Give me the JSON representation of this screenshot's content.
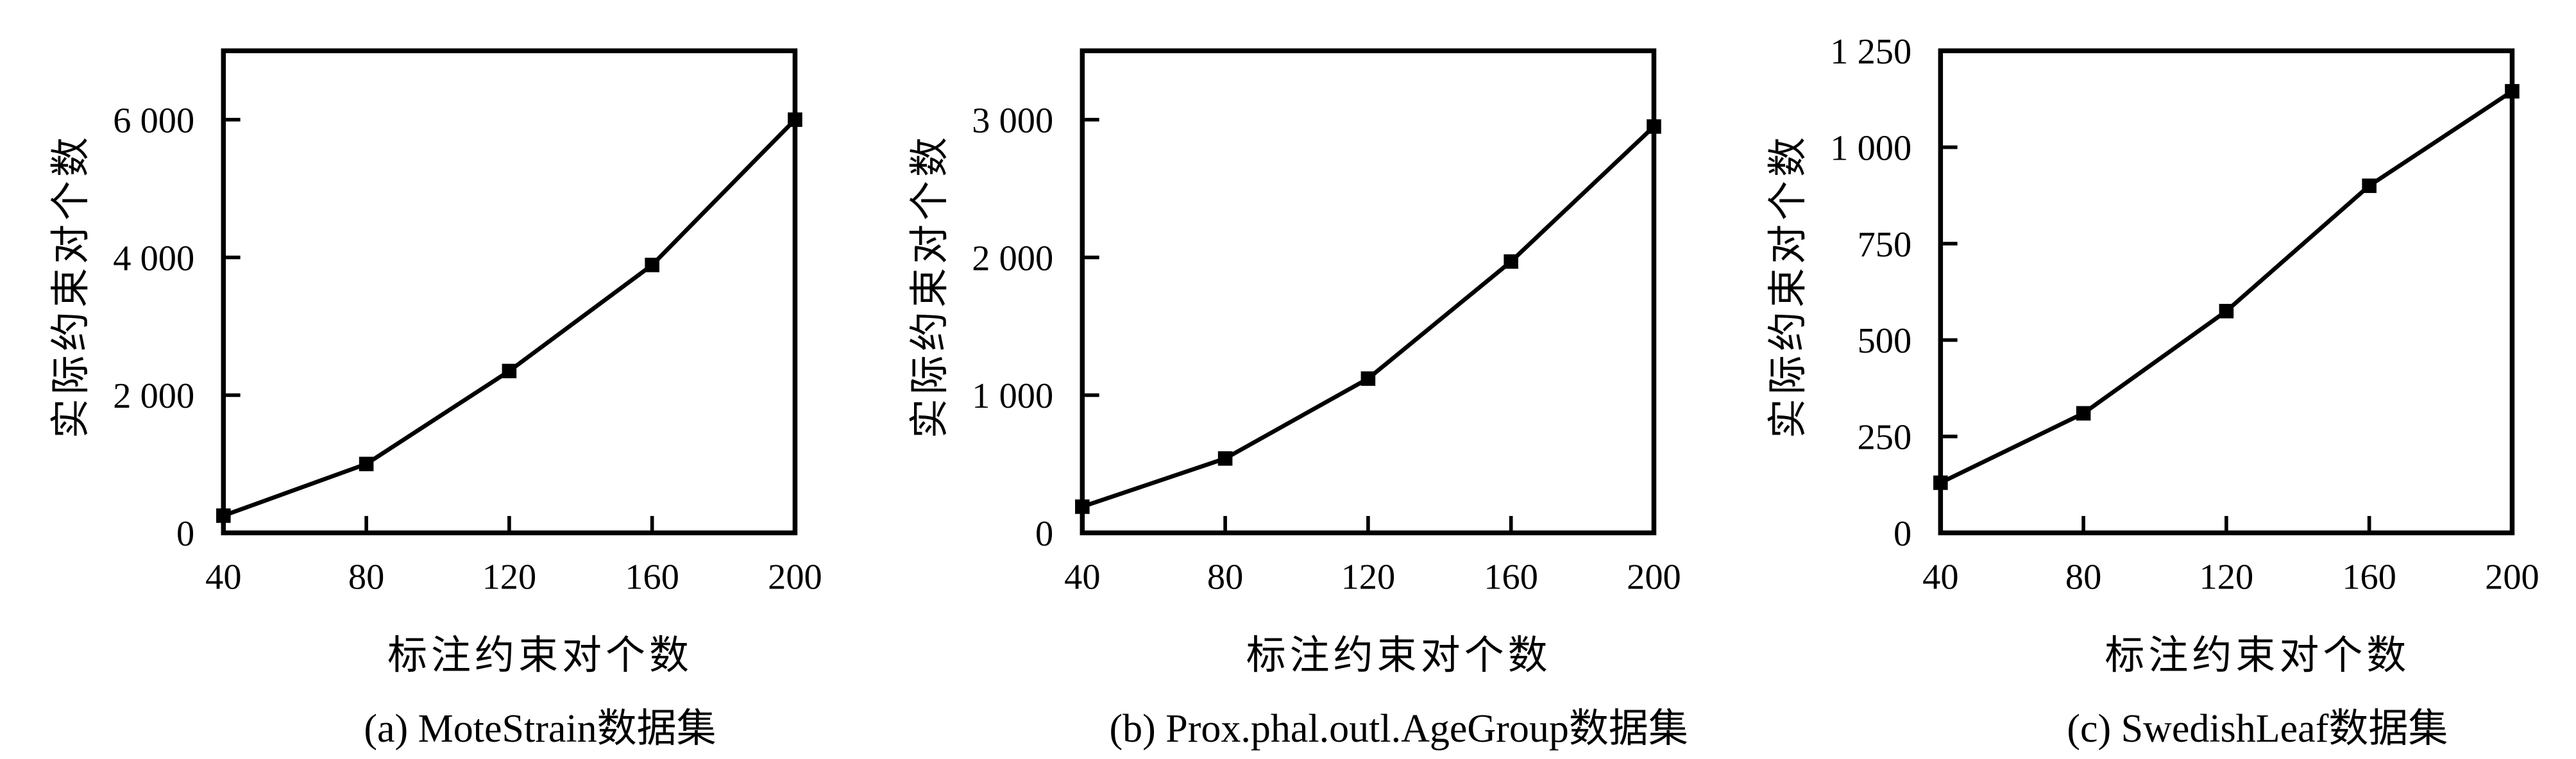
{
  "figure": {
    "background": "#ffffff",
    "ink": "#000000"
  },
  "chart_data": [
    {
      "type": "line",
      "caption": "(a) MoteStrain数据集",
      "xlabel": "标注约束对个数",
      "ylabel": "实际约束对个数",
      "x": [
        40,
        80,
        120,
        160,
        200
      ],
      "y": [
        250,
        1000,
        2350,
        3890,
        6000
      ],
      "xlim": [
        40,
        200
      ],
      "ylim": [
        0,
        7000
      ],
      "xticks": [
        40,
        80,
        120,
        160,
        200
      ],
      "xtick_labels": [
        "40",
        "80",
        "120",
        "160",
        "200"
      ],
      "yticks": [
        0,
        2000,
        4000,
        6000
      ],
      "ytick_labels": [
        "0",
        "2 000",
        "4 000",
        "6 000"
      ],
      "marker": "filled-square",
      "line_color": "#000000",
      "grid": false,
      "legend": "none"
    },
    {
      "type": "line",
      "caption": "(b) Prox.phal.outl.AgeGroup数据集",
      "xlabel": "标注约束对个数",
      "ylabel": "实际约束对个数",
      "x": [
        40,
        80,
        120,
        160,
        200
      ],
      "y": [
        190,
        540,
        1120,
        1970,
        2950
      ],
      "xlim": [
        40,
        200
      ],
      "ylim": [
        0,
        3500
      ],
      "xticks": [
        40,
        80,
        120,
        160,
        200
      ],
      "xtick_labels": [
        "40",
        "80",
        "120",
        "160",
        "200"
      ],
      "yticks": [
        0,
        1000,
        2000,
        3000
      ],
      "ytick_labels": [
        "0",
        "1 000",
        "2 000",
        "3 000"
      ],
      "marker": "filled-square",
      "line_color": "#000000",
      "grid": false,
      "legend": "none"
    },
    {
      "type": "line",
      "caption": "(c) SwedishLeaf数据集",
      "xlabel": "标注约束对个数",
      "ylabel": "实际约束对个数",
      "x": [
        40,
        80,
        120,
        160,
        200
      ],
      "y": [
        130,
        310,
        575,
        900,
        1145
      ],
      "xlim": [
        40,
        200
      ],
      "ylim": [
        0,
        1250
      ],
      "xticks": [
        40,
        80,
        120,
        160,
        200
      ],
      "xtick_labels": [
        "40",
        "80",
        "120",
        "160",
        "200"
      ],
      "yticks": [
        0,
        250,
        500,
        750,
        1000,
        1250
      ],
      "ytick_labels": [
        "0",
        "250",
        "500",
        "750",
        "1 000",
        "1 250"
      ],
      "marker": "filled-square",
      "line_color": "#000000",
      "grid": false,
      "legend": "none"
    }
  ]
}
